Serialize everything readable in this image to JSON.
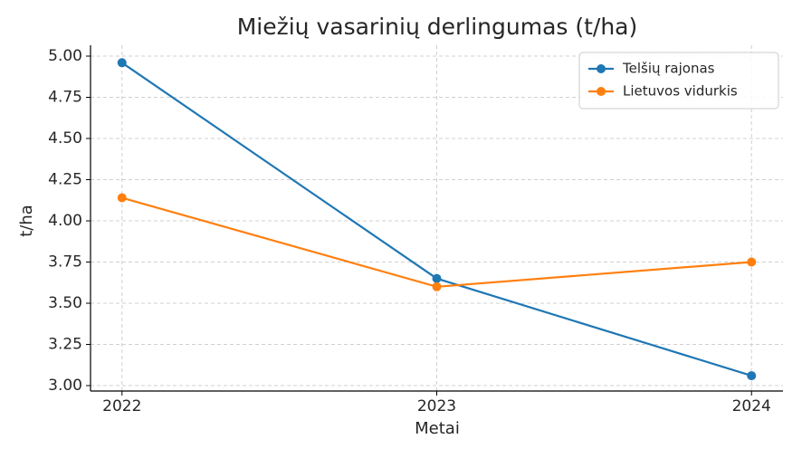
{
  "chart_data": {
    "type": "line",
    "title": "Miežių vasarinių derlingumas (t/ha)",
    "x_label": "Metai",
    "y_label": "t/ha",
    "x": [
      2022,
      2023,
      2024
    ],
    "series": [
      {
        "name": "Telšių rajonas",
        "color": "#1f77b4",
        "values": [
          4.96,
          3.65,
          3.06
        ]
      },
      {
        "name": "Lietuvos vidurkis",
        "color": "#ff7f0e",
        "values": [
          4.14,
          3.6,
          3.75
        ]
      }
    ],
    "xlim": [
      2021.9,
      2024.1
    ],
    "xticks": [
      2022,
      2023,
      2024
    ],
    "ylim": [
      2.967,
      5.066
    ],
    "yticks": [
      {
        "value": 3,
        "label": "3.00"
      },
      {
        "value": 3.25,
        "label": "3.25"
      },
      {
        "value": 3.5,
        "label": "3.50"
      },
      {
        "value": 3.75,
        "label": "3.75"
      },
      {
        "value": 4,
        "label": "4.00"
      },
      {
        "value": 4.25,
        "label": "4.25"
      },
      {
        "value": 4.5,
        "label": "4.50"
      },
      {
        "value": 4.75,
        "label": "4.75"
      },
      {
        "value": 5,
        "label": "5.00"
      }
    ],
    "grid": true,
    "legend": "upper right"
  }
}
